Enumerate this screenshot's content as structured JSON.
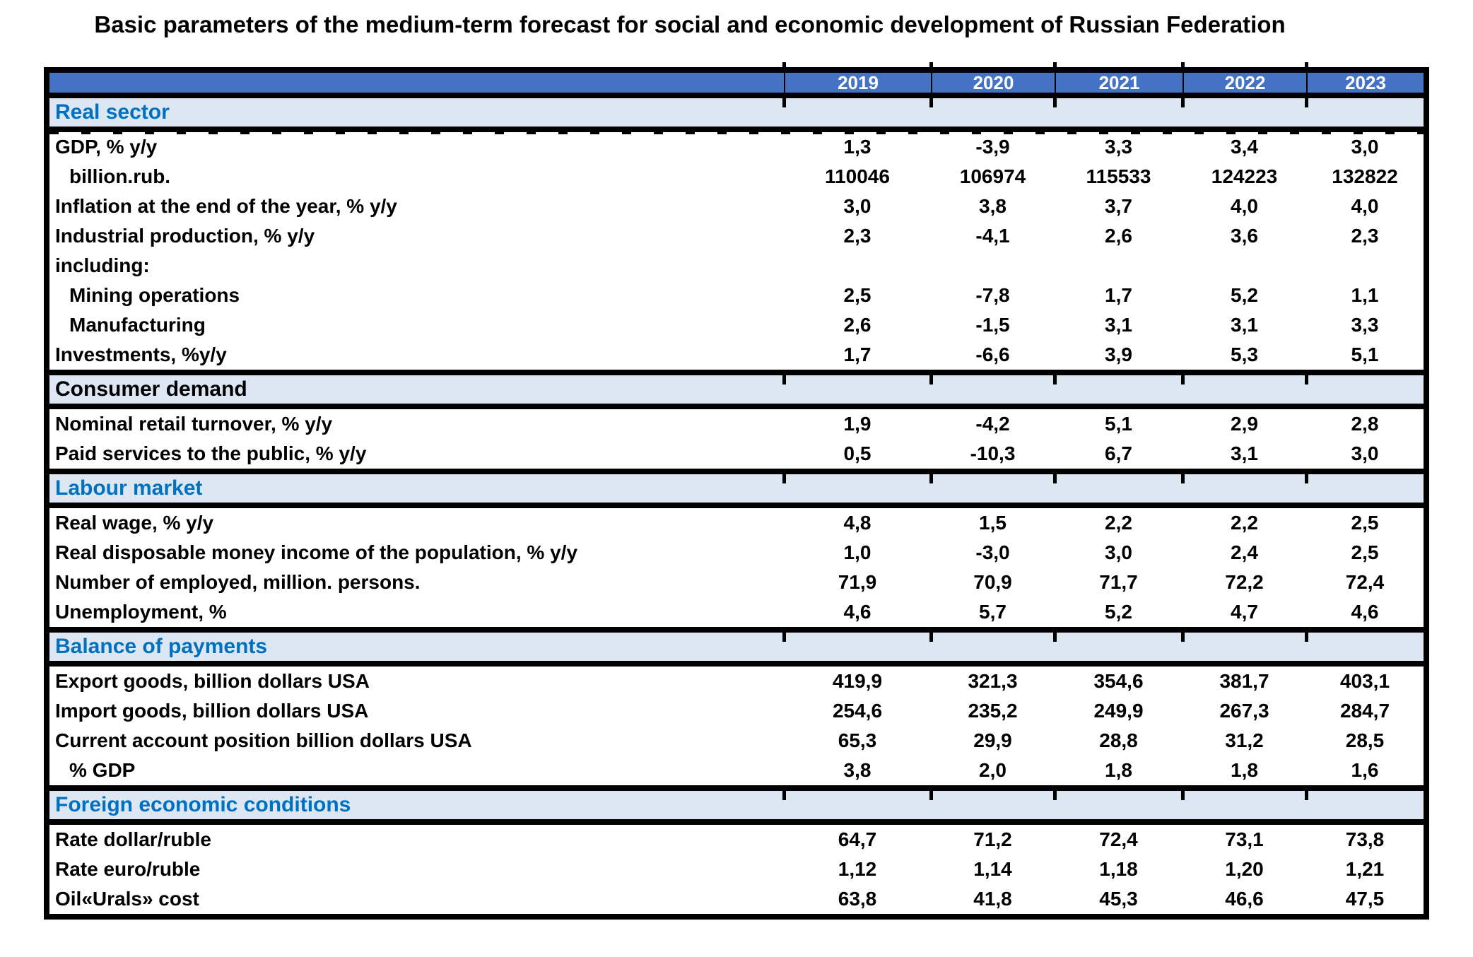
{
  "title": "Basic parameters of the medium-term forecast for social and economic development of Russian Federation",
  "columns": [
    "2019",
    "2020",
    "2021",
    "2022",
    "2023"
  ],
  "colors": {
    "header_bg": "#4472C4",
    "header_text": "#FFFFFF",
    "section_bg": "#DCE7F3",
    "section_text_blue": "#0070C0",
    "body_text": "#000000",
    "border": "#000000"
  },
  "sections": [
    {
      "label": "Real sector",
      "label_color": "#0070C0",
      "rows": [
        {
          "label": "GDP, % y/y",
          "indent": 0,
          "values": [
            "1,3",
            "-3,9",
            "3,3",
            "3,4",
            "3,0"
          ]
        },
        {
          "label": "billion.rub.",
          "indent": 1,
          "values": [
            "110046",
            "106974",
            "115533",
            "124223",
            "132822"
          ]
        },
        {
          "label": "Inflation at the end of the year, % y/y",
          "indent": 0,
          "values": [
            "3,0",
            "3,8",
            "3,7",
            "4,0",
            "4,0"
          ]
        },
        {
          "label": "Industrial production, % y/y",
          "indent": 0,
          "values": [
            "2,3",
            "-4,1",
            "2,6",
            "3,6",
            "2,3"
          ]
        },
        {
          "label": "including:",
          "indent": 0,
          "values": [
            "",
            "",
            "",
            "",
            ""
          ]
        },
        {
          "label": "Mining operations",
          "indent": 1,
          "values": [
            "2,5",
            "-7,8",
            "1,7",
            "5,2",
            "1,1"
          ]
        },
        {
          "label": "Manufacturing",
          "indent": 1,
          "values": [
            "2,6",
            "-1,5",
            "3,1",
            "3,1",
            "3,3"
          ]
        },
        {
          "label": "Investments, %y/y",
          "indent": 0,
          "values": [
            "1,7",
            "-6,6",
            "3,9",
            "5,3",
            "5,1"
          ]
        }
      ]
    },
    {
      "label": "Consumer demand",
      "label_color": "#000000",
      "rows": [
        {
          "label": "Nominal retail turnover, % y/y",
          "indent": 0,
          "values": [
            "1,9",
            "-4,2",
            "5,1",
            "2,9",
            "2,8"
          ]
        },
        {
          "label": "Paid services to the public, % y/y",
          "indent": 0,
          "values": [
            "0,5",
            "-10,3",
            "6,7",
            "3,1",
            "3,0"
          ]
        }
      ]
    },
    {
      "label": "Labour market",
      "label_color": "#0070C0",
      "rows": [
        {
          "label": "Real wage, % y/y",
          "indent": 0,
          "values": [
            "4,8",
            "1,5",
            "2,2",
            "2,2",
            "2,5"
          ]
        },
        {
          "label": "Real disposable money income of the population, % y/y",
          "indent": 0,
          "values": [
            "1,0",
            "-3,0",
            "3,0",
            "2,4",
            "2,5"
          ]
        },
        {
          "label": "Number of employed, million. persons.",
          "indent": 0,
          "values": [
            "71,9",
            "70,9",
            "71,7",
            "72,2",
            "72,4"
          ]
        },
        {
          "label": "Unemployment, %",
          "indent": 0,
          "values": [
            "4,6",
            "5,7",
            "5,2",
            "4,7",
            "4,6"
          ]
        }
      ]
    },
    {
      "label": "Balance of payments",
      "label_color": "#0070C0",
      "rows": [
        {
          "label": "Export goods, billion dollars USA",
          "indent": 0,
          "values": [
            "419,9",
            "321,3",
            "354,6",
            "381,7",
            "403,1"
          ]
        },
        {
          "label": "Import goods, billion dollars USA",
          "indent": 0,
          "values": [
            "254,6",
            "235,2",
            "249,9",
            "267,3",
            "284,7"
          ]
        },
        {
          "label": "Current account position billion dollars USA",
          "indent": 0,
          "values": [
            "65,3",
            "29,9",
            "28,8",
            "31,2",
            "28,5"
          ]
        },
        {
          "label": "% GDP",
          "indent": 1,
          "values": [
            "3,8",
            "2,0",
            "1,8",
            "1,8",
            "1,6"
          ]
        }
      ]
    },
    {
      "label": "Foreign economic conditions",
      "label_color": "#0070C0",
      "rows": [
        {
          "label": "Rate dollar/ruble",
          "indent": 0,
          "values": [
            "64,7",
            "71,2",
            "72,4",
            "73,1",
            "73,8"
          ]
        },
        {
          "label": "Rate euro/ruble",
          "indent": 0,
          "values": [
            "1,12",
            "1,14",
            "1,18",
            "1,20",
            "1,21"
          ]
        },
        {
          "label": "Oil«Urals» cost",
          "indent": 0,
          "values": [
            "63,8",
            "41,8",
            "45,3",
            "46,6",
            "47,5"
          ]
        }
      ]
    }
  ]
}
